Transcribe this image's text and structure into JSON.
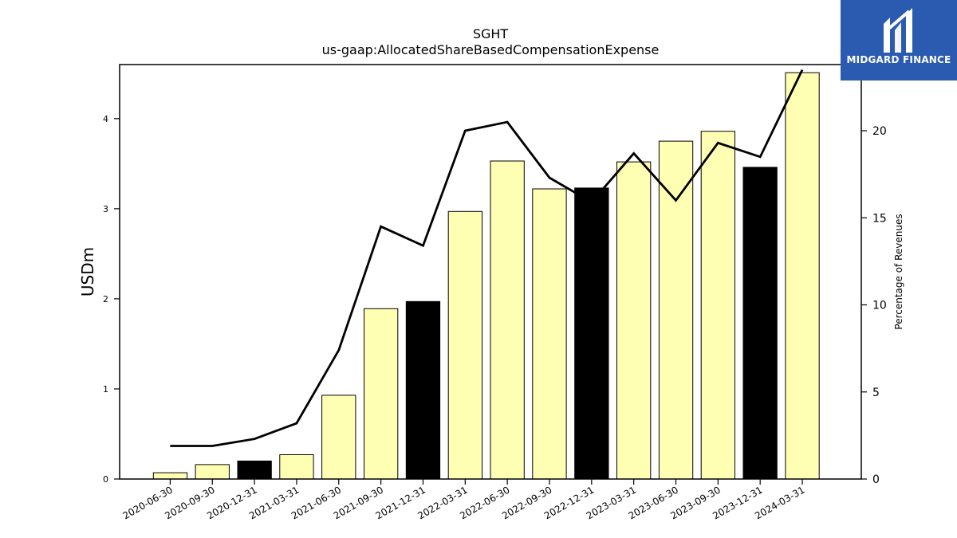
{
  "brand": {
    "name": "MIDGARD FINANCE",
    "logo_color": "#2a5bb0"
  },
  "chart_data": {
    "type": "bar",
    "title": "SGHT",
    "subtitle": "us-gaap:AllocatedShareBasedCompensationExpense",
    "ylabel": "USDm",
    "y2label": "Percentage of Revenues",
    "ylim": [
      0,
      4.6
    ],
    "y2lim": [
      0,
      23.8
    ],
    "yticks": [
      0,
      1,
      2,
      3,
      4
    ],
    "y2ticks": [
      0,
      5,
      10,
      15,
      20
    ],
    "grid": false,
    "legend": "none",
    "categories": [
      "2020-06-30",
      "2020-09-30",
      "2020-12-31",
      "2021-03-31",
      "2021-06-30",
      "2021-09-30",
      "2021-12-31",
      "2022-03-31",
      "2022-06-30",
      "2022-09-30",
      "2022-12-31",
      "2023-03-31",
      "2023-06-30",
      "2023-09-30",
      "2023-12-31",
      "2024-03-31"
    ],
    "series": [
      {
        "type": "bar",
        "axis": "left",
        "values": [
          0.07,
          0.16,
          0.2,
          0.27,
          0.93,
          1.89,
          1.97,
          2.97,
          3.53,
          3.22,
          3.23,
          3.52,
          3.75,
          3.86,
          3.46,
          4.51
        ],
        "colors": [
          "#ffffb3",
          "#ffffb3",
          "#000000",
          "#ffffb3",
          "#ffffb3",
          "#ffffb3",
          "#000000",
          "#ffffb3",
          "#ffffb3",
          "#ffffb3",
          "#000000",
          "#ffffb3",
          "#ffffb3",
          "#ffffb3",
          "#000000",
          "#ffffb3"
        ]
      },
      {
        "type": "line",
        "axis": "right",
        "color": "#000000",
        "values": [
          1.9,
          1.9,
          2.3,
          3.2,
          7.4,
          14.5,
          13.4,
          20.0,
          20.5,
          17.3,
          15.9,
          18.7,
          16.0,
          19.3,
          18.5,
          23.5
        ]
      }
    ]
  }
}
